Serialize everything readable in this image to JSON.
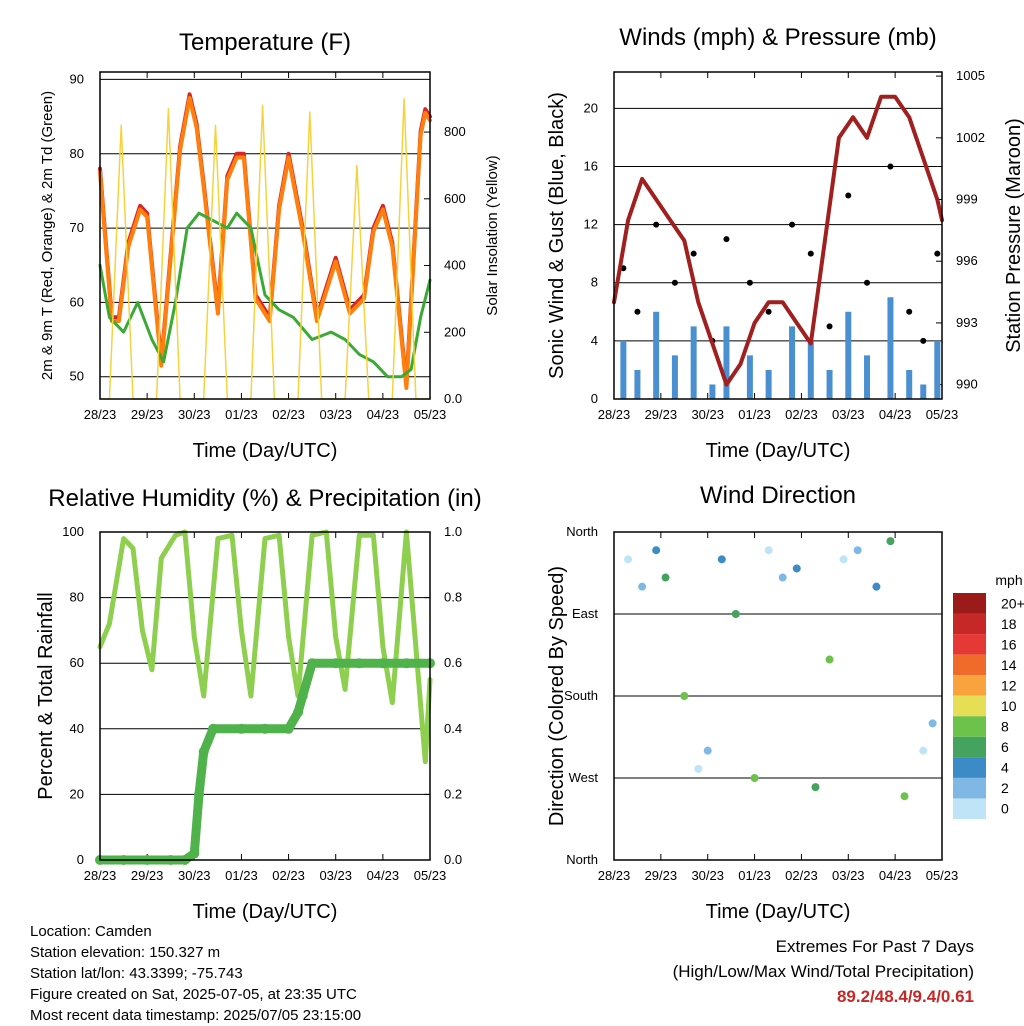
{
  "chart_data": [
    {
      "type": "line",
      "title": "Temperature (F)",
      "xlabel": "Time (Day/UTC)",
      "ylabel": "2m & 9m T (Red, Orange) & 2m Td (Green)",
      "y2label": "Solar Insolation (Yellow)",
      "categories": [
        "28/23",
        "29/23",
        "30/23",
        "01/23",
        "02/23",
        "03/23",
        "04/23",
        "05/23"
      ],
      "ylim": [
        47,
        91
      ],
      "y2lim": [
        0,
        980
      ],
      "yticks": [
        50,
        60,
        70,
        80,
        90
      ],
      "y2ticks": [
        0,
        200,
        400,
        600,
        800
      ],
      "series": [
        {
          "name": "2m T",
          "color": "#d62728",
          "x": [
            0,
            0.1,
            0.25,
            0.4,
            0.6,
            0.85,
            1.0,
            1.3,
            1.7,
            1.9,
            2.05,
            2.2,
            2.5,
            2.7,
            2.9,
            3.05,
            3.3,
            3.6,
            3.8,
            4.0,
            4.3,
            4.6,
            4.8,
            5.0,
            5.3,
            5.6,
            5.8,
            6.0,
            6.2,
            6.5,
            6.8,
            6.9,
            7.0
          ],
          "values": [
            78,
            70,
            58,
            58,
            68,
            73,
            72,
            52,
            81,
            88,
            84,
            76,
            59,
            77,
            80,
            80,
            61,
            58,
            73,
            80,
            70,
            58,
            62,
            66,
            59,
            61,
            70,
            73,
            68,
            49,
            83,
            86,
            85
          ]
        },
        {
          "name": "9m T",
          "color": "#ff7f0e",
          "x": [
            0,
            0.1,
            0.25,
            0.4,
            0.6,
            0.85,
            1.0,
            1.3,
            1.7,
            1.9,
            2.05,
            2.2,
            2.5,
            2.7,
            2.9,
            3.05,
            3.3,
            3.6,
            3.8,
            4.0,
            4.3,
            4.6,
            4.8,
            5.0,
            5.3,
            5.6,
            5.8,
            6.0,
            6.2,
            6.5,
            6.8,
            6.9,
            7.0
          ],
          "values": [
            77.5,
            69.5,
            57.5,
            57.5,
            67.5,
            72.5,
            71.5,
            51.5,
            80.5,
            87.5,
            83.5,
            75.5,
            58.5,
            76.5,
            79.5,
            79.5,
            60.5,
            57.5,
            72.5,
            79.5,
            69.5,
            57.5,
            61.5,
            65.5,
            58.5,
            60.5,
            69.5,
            72.5,
            67.5,
            48.5,
            82.5,
            85.5,
            84.5
          ]
        },
        {
          "name": "2m Td",
          "color": "#3aaa35",
          "x": [
            0,
            0.2,
            0.5,
            0.8,
            1.1,
            1.35,
            1.6,
            1.85,
            2.1,
            2.4,
            2.7,
            2.9,
            3.2,
            3.5,
            3.8,
            4.1,
            4.5,
            4.9,
            5.2,
            5.5,
            5.8,
            6.1,
            6.4,
            6.6,
            6.8,
            7.0
          ],
          "values": [
            65,
            58,
            56,
            60,
            55,
            52,
            60,
            70,
            72,
            71,
            70,
            72,
            70,
            61,
            59,
            58,
            55,
            56,
            55,
            53,
            52,
            50,
            50,
            51,
            58,
            63
          ]
        },
        {
          "name": "Solar",
          "axis": "right",
          "color": "#f5d33c",
          "x": [
            0,
            0.2,
            0.45,
            0.7,
            0.95,
            1.2,
            1.45,
            1.7,
            1.95,
            2.2,
            2.45,
            2.7,
            2.95,
            3.2,
            3.45,
            3.7,
            3.95,
            4.2,
            4.45,
            4.7,
            4.95,
            5.2,
            5.45,
            5.7,
            5.95,
            6.2,
            6.45,
            6.7,
            6.95,
            7.0
          ],
          "values": [
            0,
            0,
            820,
            0,
            0,
            0,
            870,
            0,
            0,
            0,
            820,
            0,
            0,
            0,
            880,
            0,
            0,
            0,
            860,
            0,
            0,
            0,
            700,
            0,
            0,
            0,
            900,
            0,
            0,
            0
          ]
        }
      ]
    },
    {
      "type": "scatter",
      "title": "Winds (mph) & Pressure (mb)",
      "xlabel": "Time (Day/UTC)",
      "ylabel": "Sonic Wind & Gust (Blue, Black)",
      "y2label": "Station Pressure (Maroon)",
      "categories": [
        "28/23",
        "29/23",
        "30/23",
        "01/23",
        "02/23",
        "03/23",
        "04/23",
        "05/23"
      ],
      "ylim": [
        0,
        22.5
      ],
      "y2lim": [
        989.3,
        1005.2
      ],
      "yticks": [
        0,
        4,
        8,
        12,
        16,
        20
      ],
      "y2ticks": [
        990,
        993,
        996,
        999,
        1002,
        1005
      ],
      "series": [
        {
          "name": "Gust",
          "color": "#000000",
          "x": [
            0.2,
            0.5,
            0.9,
            1.3,
            1.7,
            2.1,
            2.4,
            2.9,
            3.3,
            3.8,
            4.2,
            4.6,
            5.0,
            5.4,
            5.9,
            6.3,
            6.6,
            6.9
          ],
          "values": [
            9,
            6,
            12,
            8,
            10,
            4,
            11,
            8,
            6,
            12,
            10,
            5,
            14,
            8,
            16,
            6,
            4,
            10
          ]
        },
        {
          "name": "Wind",
          "color": "#4a90d0",
          "x": [
            0.2,
            0.5,
            0.9,
            1.3,
            1.7,
            2.1,
            2.4,
            2.9,
            3.3,
            3.8,
            4.2,
            4.6,
            5.0,
            5.4,
            5.9,
            6.3,
            6.6,
            6.9
          ],
          "values": [
            4,
            2,
            6,
            3,
            5,
            1,
            5,
            3,
            2,
            5,
            4,
            2,
            6,
            3,
            7,
            2,
            1,
            4
          ]
        },
        {
          "name": "Pressure",
          "axis": "right",
          "color": "#a01f1f",
          "x": [
            0,
            0.3,
            0.6,
            0.9,
            1.2,
            1.5,
            1.8,
            2.1,
            2.4,
            2.7,
            3.0,
            3.3,
            3.6,
            3.9,
            4.2,
            4.5,
            4.8,
            5.1,
            5.4,
            5.7,
            6.0,
            6.3,
            6.6,
            6.9,
            7.0
          ],
          "values": [
            994,
            998,
            1000,
            999,
            998,
            997,
            994,
            992,
            990,
            991,
            993,
            994,
            994,
            993,
            992,
            997,
            1002,
            1003,
            1002,
            1004,
            1004,
            1003,
            1001,
            999,
            998
          ]
        }
      ]
    },
    {
      "type": "line",
      "title": "Relative Humidity (%) & Precipitation (in)",
      "xlabel": "Time (Day/UTC)",
      "ylabel": "Percent & Total Rainfall",
      "categories": [
        "28/23",
        "29/23",
        "30/23",
        "01/23",
        "02/23",
        "03/23",
        "04/23",
        "05/23"
      ],
      "ylim": [
        0,
        100
      ],
      "y2lim": [
        0,
        1.0
      ],
      "yticks": [
        0,
        20,
        40,
        60,
        80,
        100
      ],
      "y2ticks": [
        0.0,
        0.2,
        0.4,
        0.6,
        0.8,
        1.0
      ],
      "series": [
        {
          "name": "RH",
          "color": "#8fcf4f",
          "x": [
            0,
            0.2,
            0.5,
            0.7,
            0.9,
            1.1,
            1.3,
            1.6,
            1.8,
            2.0,
            2.2,
            2.5,
            2.8,
            3.0,
            3.2,
            3.5,
            3.8,
            4.0,
            4.2,
            4.5,
            4.8,
            5.0,
            5.2,
            5.5,
            5.8,
            6.0,
            6.2,
            6.5,
            6.9,
            7.0
          ],
          "values": [
            65,
            72,
            98,
            95,
            70,
            58,
            92,
            99,
            100,
            68,
            50,
            98,
            99,
            70,
            50,
            98,
            99,
            68,
            50,
            99,
            100,
            68,
            52,
            99,
            99,
            65,
            48,
            100,
            30,
            55
          ]
        },
        {
          "name": "Precip",
          "axis": "right",
          "color": "#4fb24a",
          "x": [
            0,
            0.5,
            1.0,
            1.5,
            1.8,
            2.0,
            2.1,
            2.2,
            2.4,
            3.0,
            3.5,
            4.0,
            4.2,
            4.3,
            4.5,
            5.0,
            5.5,
            6.0,
            6.5,
            7.0
          ],
          "values": [
            0,
            0,
            0,
            0,
            0,
            0.02,
            0.2,
            0.33,
            0.4,
            0.4,
            0.4,
            0.4,
            0.45,
            0.5,
            0.6,
            0.6,
            0.6,
            0.6,
            0.6,
            0.6
          ]
        }
      ]
    },
    {
      "type": "scatter",
      "title": "Wind Direction",
      "xlabel": "Time (Day/UTC)",
      "ylabel": "Direction (Colored By Speed)",
      "categories": [
        "28/23",
        "29/23",
        "30/23",
        "01/23",
        "02/23",
        "03/23",
        "04/23",
        "05/23"
      ],
      "yticks": [
        "North",
        "West",
        "South",
        "East",
        "North"
      ],
      "colorbar": {
        "unit": "mph",
        "labels": [
          "20+",
          "18",
          "16",
          "14",
          "12",
          "10",
          "8",
          "6",
          "4",
          "2",
          "0"
        ],
        "colors": [
          "#9b1b1b",
          "#c62828",
          "#e53935",
          "#f06a2a",
          "#f9a33e",
          "#e6de55",
          "#6cc24a",
          "#43a35f",
          "#3c8bc6",
          "#7fb8e4",
          "#bfe4f7"
        ]
      },
      "series": [
        {
          "name": "Direction",
          "x": [
            0.3,
            0.6,
            0.9,
            1.1,
            1.5,
            1.8,
            2.0,
            2.3,
            2.6,
            3.0,
            3.3,
            3.6,
            3.9,
            4.3,
            4.6,
            4.9,
            5.2,
            5.6,
            5.9,
            6.2,
            6.6,
            6.8
          ],
          "values": [
            330,
            300,
            340,
            310,
            180,
            100,
            120,
            330,
            270,
            90,
            340,
            310,
            320,
            80,
            220,
            330,
            340,
            300,
            350,
            70,
            120,
            150
          ]
        }
      ]
    }
  ],
  "meta": {
    "location": "Location: Camden",
    "elevation": "Station elevation: 150.327 m",
    "latlon": "Station lat/lon: 43.3399; -75.743",
    "created": "Figure created on Sat, 2025-07-05, at 23:35 UTC",
    "recent": "Most recent data timestamp: 2025/07/05 23:15:00"
  },
  "extremes": {
    "line1": "Extremes For Past 7 Days",
    "line2": "(High/Low/Max Wind/Total Precipitation)",
    "values": "89.2/48.4/9.4/0.61"
  }
}
